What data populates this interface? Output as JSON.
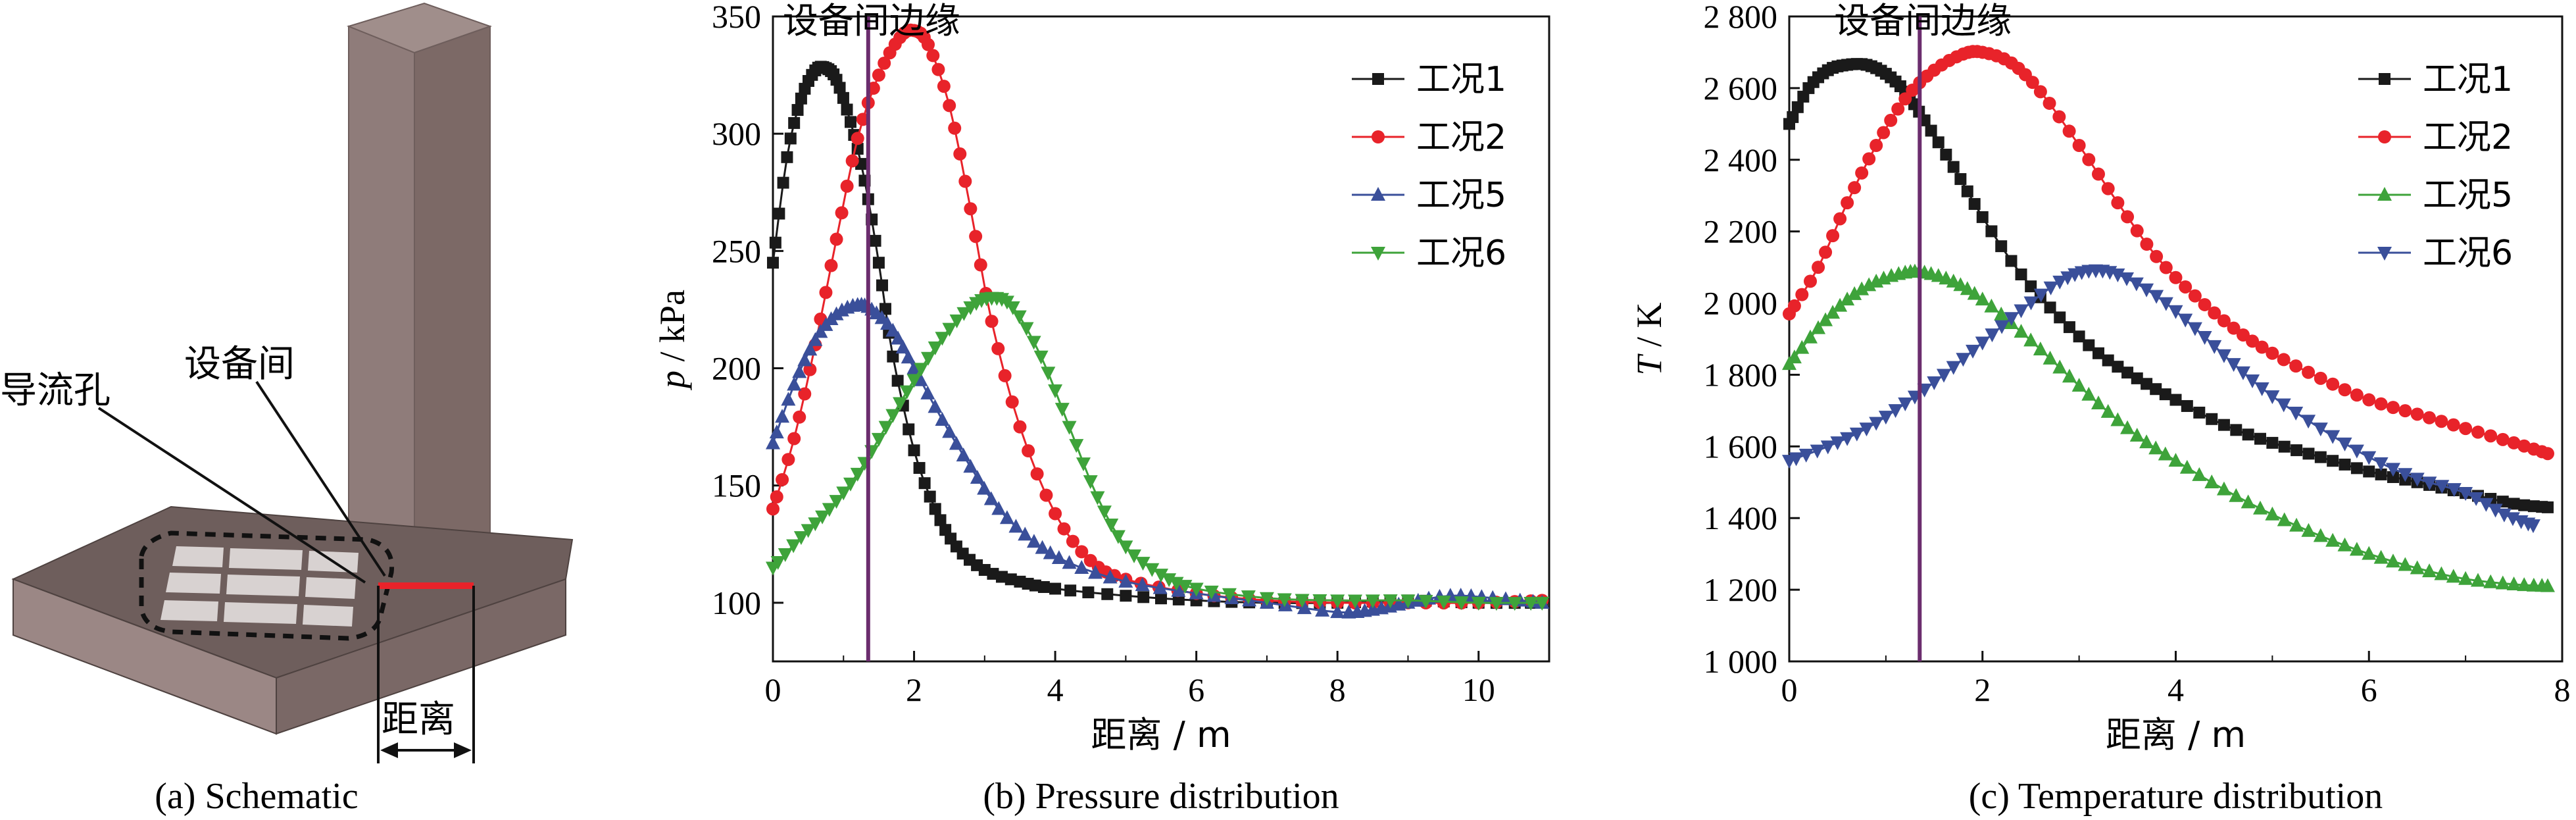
{
  "schematic": {
    "caption": "(a) Schematic",
    "label_hole": "导流孔",
    "label_room": "设备间",
    "label_distance": "距离"
  },
  "colors": {
    "case1": "#1a1a1a",
    "case2": "#e8232a",
    "case5": "#3a4f9a",
    "case6": "#3ea33a",
    "marker_line": "#6b2d6e"
  },
  "chart_data": [
    {
      "type": "line",
      "caption": "(b) Pressure distribution",
      "annotation": "设备间边缘",
      "annotation_x": 1.35,
      "xlabel": "距离 / m",
      "ylabel_var": "p",
      "ylabel_unit": " / kPa",
      "xlim": [
        0,
        11
      ],
      "ylim": [
        75,
        350
      ],
      "xticks": [
        0,
        2,
        4,
        6,
        8,
        10
      ],
      "yticks": [
        100,
        150,
        200,
        250,
        300,
        350
      ],
      "ytick_labels": [
        "100",
        "150",
        "200",
        "250",
        "300",
        "350"
      ],
      "legend_position": "top-right",
      "grid": false,
      "series": [
        {
          "name": "工况1",
          "marker": "square",
          "color": "#1a1a1a",
          "x": [
            0,
            0.2,
            0.4,
            0.6,
            0.75,
            0.9,
            1.1,
            1.3,
            1.5,
            1.7,
            2.0,
            2.3,
            2.6,
            3.0,
            3.5,
            4.0,
            5.0,
            6.0,
            7.0,
            8.0,
            9.0,
            10.0,
            10.9
          ],
          "y": [
            245,
            290,
            315,
            327,
            328,
            323,
            305,
            280,
            245,
            205,
            165,
            140,
            124,
            114,
            109,
            106,
            103,
            101,
            100,
            100,
            101,
            100,
            100
          ]
        },
        {
          "name": "工况2",
          "marker": "circle",
          "color": "#e8232a",
          "x": [
            0,
            0.3,
            0.6,
            0.9,
            1.2,
            1.5,
            1.8,
            2.0,
            2.2,
            2.5,
            2.8,
            3.1,
            3.5,
            4.0,
            4.5,
            5.0,
            6.0,
            7.0,
            8.0,
            9.0,
            10.0,
            10.9
          ],
          "y": [
            140,
            170,
            210,
            255,
            298,
            325,
            341,
            344,
            338,
            312,
            268,
            220,
            175,
            138,
            118,
            110,
            104,
            101,
            100,
            100,
            100,
            101
          ]
        },
        {
          "name": "工况5",
          "marker": "triangle-up",
          "color": "#3a4f9a",
          "x": [
            0,
            0.3,
            0.6,
            0.9,
            1.2,
            1.4,
            1.7,
            2.0,
            2.4,
            2.8,
            3.2,
            3.7,
            4.2,
            5.0,
            6.0,
            7.0,
            8.0,
            8.5,
            9.0,
            9.6,
            10.2,
            10.9
          ],
          "y": [
            168,
            193,
            212,
            223,
            227,
            225,
            216,
            200,
            178,
            158,
            140,
            126,
            117,
            109,
            104,
            100,
            96,
            97,
            100,
            103,
            102,
            100
          ]
        },
        {
          "name": "工况6",
          "marker": "triangle-down",
          "color": "#3ea33a",
          "x": [
            0,
            0.4,
            0.8,
            1.2,
            1.6,
            2.0,
            2.4,
            2.8,
            3.1,
            3.4,
            3.8,
            4.2,
            4.6,
            5.0,
            5.5,
            6.0,
            7.0,
            8.0,
            9.0,
            10.0,
            10.9
          ],
          "y": [
            115,
            128,
            140,
            155,
            175,
            195,
            213,
            226,
            230,
            226,
            205,
            175,
            145,
            124,
            112,
            106,
            102,
            101,
            101,
            100,
            100
          ]
        }
      ]
    },
    {
      "type": "line",
      "caption": "(c) Temperature distribution",
      "annotation": "设备间边缘",
      "annotation_x": 1.35,
      "xlabel": "距离 / m",
      "ylabel_var": "T",
      "ylabel_unit": " / K",
      "xlim": [
        0,
        8
      ],
      "ylim": [
        1000,
        2800
      ],
      "xticks": [
        0,
        2,
        4,
        6,
        8
      ],
      "yticks": [
        1000,
        1200,
        1400,
        1600,
        1800,
        2000,
        2200,
        2400,
        2600,
        2800
      ],
      "ytick_labels": [
        "1 000",
        "1 200",
        "1 400",
        "1 600",
        "1 800",
        "2 000",
        "2 200",
        "2 400",
        "2 600",
        "2 800"
      ],
      "legend_position": "top-right",
      "grid": false,
      "series": [
        {
          "name": "工况1",
          "marker": "square",
          "color": "#1a1a1a",
          "x": [
            0,
            0.2,
            0.4,
            0.6,
            0.8,
            1.0,
            1.2,
            1.4,
            1.7,
            2.0,
            2.4,
            2.8,
            3.2,
            3.6,
            4.0,
            4.5,
            5.0,
            5.5,
            6.0,
            6.5,
            7.0,
            7.5,
            7.85
          ],
          "y": [
            2500,
            2600,
            2650,
            2665,
            2665,
            2640,
            2590,
            2510,
            2380,
            2240,
            2080,
            1960,
            1860,
            1790,
            1730,
            1660,
            1610,
            1570,
            1530,
            1500,
            1470,
            1440,
            1430
          ]
        },
        {
          "name": "工况2",
          "marker": "circle",
          "color": "#e8232a",
          "x": [
            0,
            0.3,
            0.6,
            0.9,
            1.2,
            1.5,
            1.8,
            2.0,
            2.3,
            2.6,
            3.0,
            3.4,
            3.8,
            4.2,
            4.6,
            5.0,
            5.5,
            6.0,
            6.5,
            7.0,
            7.5,
            7.85
          ],
          "y": [
            1970,
            2100,
            2280,
            2440,
            2570,
            2650,
            2695,
            2700,
            2670,
            2590,
            2440,
            2280,
            2130,
            2020,
            1930,
            1860,
            1790,
            1730,
            1690,
            1650,
            1610,
            1580
          ]
        },
        {
          "name": "工况5",
          "marker": "triangle-up",
          "color": "#3ea33a",
          "x": [
            0,
            0.3,
            0.6,
            0.9,
            1.2,
            1.4,
            1.7,
            2.0,
            2.4,
            2.8,
            3.2,
            3.6,
            4.0,
            4.5,
            5.0,
            5.5,
            6.0,
            6.5,
            7.0,
            7.5,
            7.85
          ],
          "y": [
            1830,
            1930,
            2010,
            2060,
            2085,
            2085,
            2060,
            2010,
            1920,
            1820,
            1720,
            1630,
            1560,
            1480,
            1410,
            1350,
            1300,
            1260,
            1230,
            1215,
            1210
          ]
        },
        {
          "name": "工况6",
          "marker": "triangle-down",
          "color": "#3a4f9a",
          "x": [
            0,
            0.4,
            0.8,
            1.2,
            1.6,
            2.0,
            2.4,
            2.8,
            3.1,
            3.4,
            3.8,
            4.2,
            4.6,
            5.0,
            5.5,
            6.0,
            6.5,
            7.0,
            7.4,
            7.7
          ],
          "y": [
            1560,
            1600,
            1650,
            1720,
            1800,
            1890,
            1980,
            2060,
            2090,
            2080,
            2020,
            1930,
            1830,
            1740,
            1650,
            1570,
            1510,
            1470,
            1410,
            1380
          ]
        }
      ]
    }
  ]
}
